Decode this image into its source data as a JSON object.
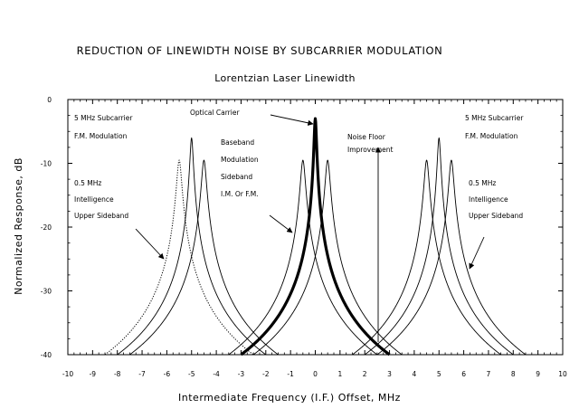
{
  "chart_data": {
    "type": "line",
    "title": "REDUCTION OF LINEWIDTH NOISE BY SUBCARRIER MODULATION",
    "subtitle": "Lorentzian Laser Linewidth",
    "xlabel": "Intermediate Frequency (I.F.) Offset, MHz",
    "ylabel": "Normalized Response, dB",
    "xlim": [
      -10,
      10
    ],
    "ylim": [
      -40,
      0
    ],
    "x_ticks": [
      "-10",
      "-9",
      "-8",
      "-7",
      "-6",
      "-5",
      "-4",
      "-3",
      "-2",
      "-1",
      "0",
      "1",
      "2",
      "3",
      "4",
      "5",
      "6",
      "7",
      "8",
      "9",
      "10"
    ],
    "y_ticks": [
      "0",
      "-10",
      "-20",
      "-30",
      "-40"
    ],
    "grid": false,
    "colors": {
      "line": "#000000",
      "background": "#ffffff"
    },
    "series": [
      {
        "center": 0,
        "peak": -3,
        "style": "bold"
      },
      {
        "center": -0.5,
        "peak": -9.5,
        "style": "solid"
      },
      {
        "center": 0.5,
        "peak": -9.5,
        "style": "solid"
      },
      {
        "center": -5,
        "peak": -6,
        "style": "solid"
      },
      {
        "center": 5,
        "peak": -6,
        "style": "solid"
      },
      {
        "center": -5.5,
        "peak": -9.5,
        "style": "dotted"
      },
      {
        "center": -4.5,
        "peak": -9.5,
        "style": "solid"
      },
      {
        "center": 4.5,
        "peak": -9.5,
        "style": "solid"
      },
      {
        "center": 5.5,
        "peak": -9.5,
        "style": "solid"
      }
    ],
    "annotations": [
      {
        "lines": [
          "Optical Carrier"
        ],
        "arrow": true
      },
      {
        "lines": [
          "5 MHz Subcarrier",
          "F.M. Modulation"
        ],
        "arrow": false
      },
      {
        "lines": [
          "5 MHz Subcarrier",
          "F.M. Modulation"
        ],
        "arrow": false
      },
      {
        "lines": [
          "Baseband",
          "Modulation",
          "Sideband",
          "I.M. Or F.M."
        ],
        "arrow": true
      },
      {
        "lines": [
          "Noise Floor",
          "Improvement"
        ],
        "arrow": true
      },
      {
        "lines": [
          "0.5 MHz",
          "Intelligence",
          "Upper Sideband"
        ],
        "arrow": true
      },
      {
        "lines": [
          "0.5 MHz",
          "Intelligence",
          "Upper Sideband"
        ],
        "arrow": true
      }
    ]
  }
}
